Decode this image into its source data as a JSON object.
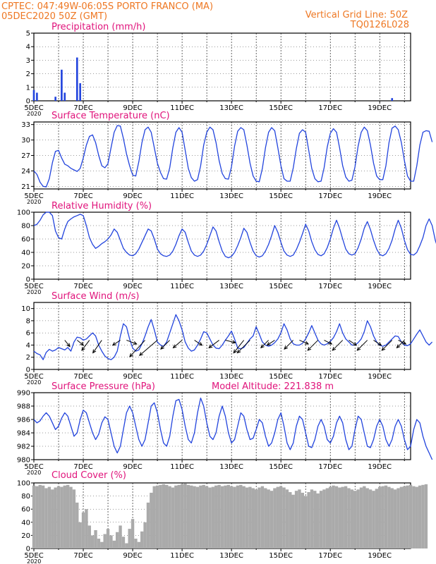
{
  "header": {
    "line1_left": "CPTEC:   047:49W-06:05S   PORTO FRANCO (MA)",
    "line2_left": "05DEC2020 50Z (GMT)",
    "line1_right": "Vertical Grid Line: 50Z",
    "line2_right": "TQ0126L028",
    "year_label": "2020"
  },
  "colors": {
    "header": "#ee7722",
    "panel_title": "#e0137b",
    "line": "#2244dd",
    "cloud": "#aaaaaa",
    "arrow": "#000000"
  },
  "x_axis": {
    "start": "2020-12-05T00Z",
    "end": "2020-12-20T06Z",
    "step_hours": 3,
    "tick_labels": [
      "5DEC",
      "7DEC",
      "9DEC",
      "11DEC",
      "13DEC",
      "15DEC",
      "17DEC",
      "19DEC"
    ],
    "tick_dates": [
      "2020-12-05",
      "2020-12-07",
      "2020-12-09",
      "2020-12-11",
      "2020-12-13",
      "2020-12-15",
      "2020-12-17",
      "2020-12-19"
    ],
    "grid": "vertical dashed lines at 00Z each day"
  },
  "chart_data": [
    {
      "id": "precip",
      "type": "bar",
      "title": "Precipitation (mm/h)",
      "ylim": [
        0,
        5
      ],
      "yticks": [
        "0",
        "1",
        "2",
        "3",
        "4",
        "5"
      ],
      "values": [
        0.8,
        0.6,
        0,
        0,
        0,
        0,
        0,
        0.3,
        0,
        2.3,
        0.6,
        0,
        0,
        0,
        3.2,
        1.3,
        0,
        0,
        0,
        0,
        0,
        0,
        0,
        0,
        0,
        0,
        0,
        0,
        0,
        0,
        0,
        0,
        0,
        0,
        0,
        0,
        0,
        0,
        0,
        0,
        0,
        0,
        0,
        0,
        0,
        0,
        0,
        0,
        0,
        0,
        0,
        0,
        0,
        0,
        0,
        0,
        0,
        0,
        0,
        0,
        0,
        0,
        0,
        0,
        0,
        0,
        0,
        0,
        0,
        0,
        0,
        0,
        0,
        0,
        0,
        0,
        0,
        0,
        0,
        0,
        0,
        0,
        0,
        0,
        0,
        0,
        0,
        0,
        0,
        0,
        0,
        0,
        0,
        0,
        0,
        0,
        0,
        0,
        0,
        0,
        0,
        0,
        0,
        0,
        0,
        0,
        0,
        0,
        0,
        0,
        0,
        0,
        0,
        0,
        0,
        0,
        0.2,
        0,
        0,
        0,
        0,
        0,
        0,
        0
      ]
    },
    {
      "id": "temp",
      "type": "line",
      "title": "Surface Temperature (nC)",
      "ylim": [
        20.5,
        33.5
      ],
      "yticks": [
        "21",
        "24",
        "27",
        "30",
        "33"
      ],
      "values": [
        24.0,
        23.3,
        21.8,
        21.0,
        20.9,
        22.5,
        25.6,
        27.8,
        28.0,
        26.5,
        25.3,
        25.0,
        24.5,
        24.2,
        23.9,
        24.5,
        26.5,
        29.0,
        30.7,
        31.0,
        29.5,
        27.0,
        25.0,
        24.6,
        25.4,
        28.5,
        31.5,
        32.8,
        32.7,
        30.3,
        27.3,
        25.0,
        23.2,
        23.0,
        25.8,
        29.5,
        32.0,
        32.5,
        31.5,
        28.5,
        25.5,
        23.7,
        22.5,
        22.4,
        24.6,
        28.5,
        31.5,
        32.4,
        31.5,
        28.0,
        24.5,
        22.7,
        22.0,
        22.3,
        25.0,
        29.0,
        31.5,
        32.5,
        32.0,
        29.5,
        26.0,
        23.5,
        22.5,
        22.4,
        24.8,
        28.8,
        31.7,
        32.4,
        32.0,
        29.0,
        25.5,
        23.0,
        22.0,
        21.9,
        24.5,
        28.5,
        31.5,
        32.4,
        31.8,
        28.5,
        25.0,
        22.5,
        22.0,
        22.0,
        24.6,
        28.3,
        31.3,
        32.0,
        31.5,
        28.0,
        24.5,
        22.5,
        21.9,
        22.0,
        24.6,
        28.6,
        31.3,
        32.2,
        31.5,
        28.5,
        25.0,
        22.8,
        22.0,
        22.2,
        24.8,
        28.8,
        31.5,
        32.5,
        31.8,
        29.0,
        25.5,
        23.0,
        22.3,
        22.3,
        25.0,
        29.5,
        32.3,
        32.7,
        32.0,
        29.5,
        26.0,
        23.0,
        22.0,
        22.0,
        25.0,
        29.0,
        31.5,
        31.8,
        31.7,
        29.6
      ]
    },
    {
      "id": "rh",
      "type": "line",
      "title": "Relative Humidity (%)",
      "ylim": [
        0,
        100
      ],
      "yticks": [
        "0",
        "20",
        "40",
        "60",
        "80",
        "100"
      ],
      "values": [
        80,
        82,
        88,
        96,
        100,
        100,
        95,
        72,
        62,
        60,
        75,
        86,
        90,
        93,
        95,
        97,
        95,
        80,
        62,
        52,
        46,
        49,
        53,
        56,
        60,
        66,
        75,
        70,
        58,
        46,
        40,
        36,
        35,
        38,
        45,
        55,
        65,
        75,
        72,
        60,
        45,
        38,
        35,
        34,
        36,
        42,
        52,
        65,
        75,
        70,
        55,
        42,
        36,
        34,
        36,
        42,
        52,
        65,
        78,
        72,
        56,
        42,
        34,
        32,
        34,
        40,
        50,
        62,
        76,
        70,
        55,
        42,
        35,
        33,
        35,
        42,
        52,
        65,
        80,
        70,
        55,
        42,
        36,
        34,
        36,
        44,
        55,
        68,
        82,
        72,
        56,
        44,
        37,
        35,
        38,
        47,
        60,
        76,
        88,
        76,
        60,
        45,
        38,
        36,
        38,
        47,
        60,
        76,
        86,
        74,
        58,
        45,
        37,
        35,
        38,
        46,
        58,
        75,
        88,
        76,
        58,
        44,
        37,
        36,
        40,
        50,
        62,
        80,
        90,
        80,
        58,
        44,
        42,
        48,
        58
      ]
    },
    {
      "id": "wind",
      "type": "line",
      "title": "Surface Wind (m/s)",
      "ylim": [
        0,
        11
      ],
      "yticks": [
        "0",
        "2",
        "4",
        "6",
        "8",
        "10"
      ],
      "values": [
        3.0,
        2.6,
        2.4,
        1.6,
        2.8,
        3.3,
        3.0,
        3.2,
        3.6,
        3.4,
        3.2,
        3.6,
        3.0,
        4.5,
        5.3,
        5.2,
        4.8,
        5.0,
        5.5,
        6.0,
        5.5,
        4.0,
        3.0,
        2.2,
        1.8,
        1.6,
        2.0,
        3.0,
        5.5,
        7.5,
        7.0,
        5.0,
        3.5,
        3.0,
        3.2,
        4.2,
        5.5,
        7.0,
        8.2,
        6.5,
        4.5,
        4.0,
        3.8,
        4.5,
        6.0,
        7.5,
        9.0,
        8.0,
        6.5,
        4.5,
        3.5,
        3.0,
        3.2,
        4.0,
        5.0,
        6.2,
        6.0,
        5.0,
        4.0,
        3.5,
        3.4,
        4.0,
        4.8,
        5.5,
        6.3,
        5.0,
        3.5,
        3.4,
        3.6,
        4.3,
        5.0,
        5.5,
        7.0,
        5.8,
        4.5,
        4.0,
        3.8,
        4.0,
        4.4,
        5.0,
        6.0,
        7.5,
        6.5,
        5.0,
        4.2,
        4.0,
        4.0,
        4.3,
        5.0,
        6.0,
        7.2,
        6.0,
        4.8,
        4.2,
        4.0,
        4.2,
        4.6,
        5.2,
        6.2,
        7.5,
        6.0,
        5.0,
        4.5,
        4.0,
        4.0,
        4.4,
        5.0,
        6.2,
        8.0,
        7.0,
        5.5,
        4.5,
        4.0,
        3.8,
        4.0,
        4.5,
        5.0,
        5.5,
        5.4,
        4.5,
        4.0,
        3.9,
        4.2,
        5.0,
        5.8,
        6.5,
        5.5,
        4.5,
        4.0,
        4.5
      ]
    },
    {
      "id": "pres",
      "type": "line",
      "title": "Surface Pressure (hPa)",
      "annotation": "Model Altitude: 221.838 m",
      "ylim": [
        980,
        990
      ],
      "yticks": [
        "980",
        "982",
        "984",
        "986",
        "988",
        "990"
      ],
      "values": [
        986.0,
        985.5,
        985.8,
        986.5,
        987.0,
        986.5,
        985.5,
        984.5,
        985.0,
        986.2,
        987.0,
        986.5,
        985.0,
        983.5,
        984.0,
        986.0,
        987.4,
        987.0,
        985.5,
        984.0,
        983.0,
        983.8,
        985.5,
        986.4,
        986.0,
        984.0,
        982.0,
        981.0,
        982.0,
        984.5,
        987.0,
        988.0,
        987.0,
        985.0,
        983.0,
        982.0,
        983.0,
        985.5,
        988.0,
        988.5,
        987.0,
        984.5,
        982.5,
        982.0,
        983.5,
        986.5,
        988.8,
        989.0,
        987.5,
        985.0,
        983.0,
        982.5,
        984.0,
        987.0,
        989.2,
        988.0,
        985.5,
        983.5,
        983.0,
        984.0,
        986.5,
        988.0,
        986.5,
        984.0,
        982.5,
        983.0,
        985.0,
        987.0,
        986.5,
        984.5,
        983.0,
        983.2,
        984.5,
        986.0,
        985.5,
        983.5,
        982.0,
        982.5,
        984.0,
        986.0,
        987.0,
        985.0,
        982.5,
        981.5,
        982.5,
        985.0,
        986.5,
        986.0,
        984.0,
        982.0,
        981.8,
        983.0,
        985.0,
        986.0,
        985.0,
        983.0,
        982.5,
        983.5,
        985.5,
        986.5,
        985.5,
        983.0,
        981.5,
        982.0,
        984.5,
        986.5,
        986.0,
        984.0,
        982.0,
        981.8,
        983.0,
        985.0,
        986.0,
        985.0,
        983.0,
        982.0,
        983.0,
        985.0,
        986.0,
        985.0,
        983.0,
        981.5,
        982.0,
        984.5,
        986.0,
        985.5,
        983.5,
        982.0,
        981.0,
        980.0
      ]
    },
    {
      "id": "cloud",
      "type": "bar",
      "title": "Cloud Cover (%)",
      "ylim": [
        0,
        100
      ],
      "yticks": [
        "0",
        "20",
        "40",
        "60",
        "80",
        "100"
      ],
      "values": [
        96,
        95,
        97,
        96,
        92,
        94,
        90,
        93,
        95,
        94,
        96,
        97,
        94,
        90,
        70,
        40,
        55,
        60,
        35,
        20,
        28,
        15,
        10,
        22,
        30,
        20,
        12,
        25,
        35,
        18,
        8,
        30,
        45,
        15,
        10,
        26,
        40,
        70,
        85,
        95,
        96,
        97,
        98,
        97,
        95,
        93,
        96,
        97,
        98,
        99,
        97,
        96,
        95,
        94,
        96,
        97,
        95,
        93,
        94,
        96,
        97,
        95,
        96,
        97,
        95,
        94,
        96,
        97,
        95,
        93,
        94,
        92,
        90,
        93,
        95,
        92,
        90,
        88,
        92,
        94,
        95,
        93,
        90,
        86,
        82,
        88,
        90,
        85,
        80,
        86,
        90,
        88,
        84,
        88,
        90,
        92,
        94,
        96,
        95,
        93,
        94,
        95,
        92,
        90,
        88,
        90,
        93,
        95,
        92,
        90,
        88,
        91,
        94,
        95,
        96,
        94,
        92,
        90,
        92,
        94,
        95,
        96,
        97,
        95,
        94,
        96,
        97,
        98
      ]
    },
    {
      "id": "wind_vectors",
      "type": "vector",
      "arrows": [
        {
          "t": 1.25,
          "u": 2.0,
          "v": 2.5
        },
        {
          "t": 1.75,
          "u": 2.5,
          "v": 2.0
        },
        {
          "t": 2.25,
          "u": -3.0,
          "v": 4.0
        },
        {
          "t": 2.75,
          "u": -3.5,
          "v": 5.0
        },
        {
          "t": 3.5,
          "u": -3.0,
          "v": 2.0
        },
        {
          "t": 3.75,
          "u": 4.0,
          "v": 1.5
        },
        {
          "t": 4.5,
          "u": -6.0,
          "v": 6.5
        },
        {
          "t": 5.0,
          "u": -7.0,
          "v": 6.0
        },
        {
          "t": 5.5,
          "u": -3.5,
          "v": 3.5
        },
        {
          "t": 6.0,
          "u": -3.5,
          "v": 3.0
        },
        {
          "t": 6.5,
          "u": 3.0,
          "v": 2.0
        },
        {
          "t": 7.5,
          "u": -4.0,
          "v": 3.0
        },
        {
          "t": 7.75,
          "u": 4.0,
          "v": 1.0
        },
        {
          "t": 8.5,
          "u": -4.0,
          "v": 5.0
        },
        {
          "t": 8.75,
          "u": -5.0,
          "v": 5.0
        },
        {
          "t": 9.5,
          "u": -3.0,
          "v": 3.0
        },
        {
          "t": 9.75,
          "u": -3.0,
          "v": 2.0
        },
        {
          "t": 10.5,
          "u": -3.5,
          "v": 3.5
        },
        {
          "t": 10.75,
          "u": 3.5,
          "v": 1.5
        },
        {
          "t": 11.5,
          "u": -4.0,
          "v": 4.0
        },
        {
          "t": 11.75,
          "u": 3.0,
          "v": 1.5
        },
        {
          "t": 12.5,
          "u": -4.0,
          "v": 4.0
        },
        {
          "t": 12.75,
          "u": 3.0,
          "v": 2.0
        },
        {
          "t": 13.5,
          "u": -4.0,
          "v": 4.0
        },
        {
          "t": 13.75,
          "u": 3.0,
          "v": 2.0
        },
        {
          "t": 14.5,
          "u": -4.0,
          "v": 4.0
        },
        {
          "t": 14.75,
          "u": 3.0,
          "v": 1.5
        },
        {
          "t": 15.0,
          "u": -3.0,
          "v": 3.0
        }
      ]
    }
  ]
}
